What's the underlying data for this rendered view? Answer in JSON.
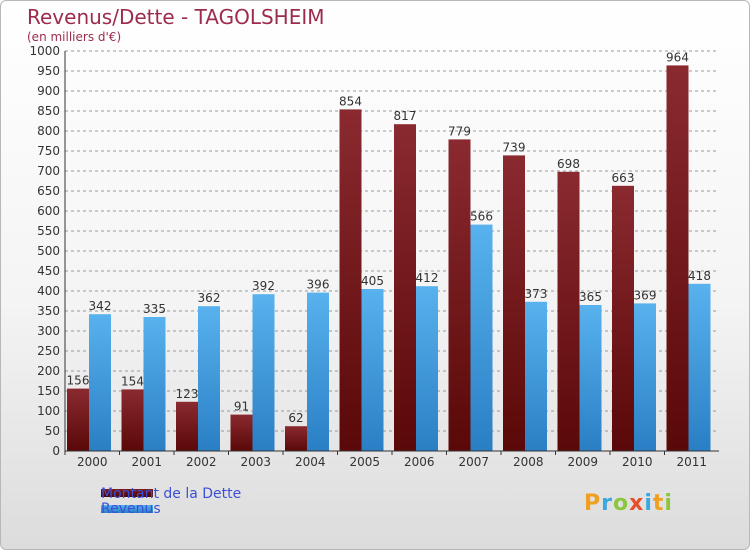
{
  "title": "Revenus/Dette - TAGOLSHEIM",
  "subtitle": "(en milliers d'€)",
  "brand": {
    "text": "Proxiti",
    "colors": [
      "#f0a020",
      "#3aa7e0",
      "#8cc63f",
      "#e84e2a",
      "#3aa7e0",
      "#f0a020",
      "#8cc63f"
    ]
  },
  "colors": {
    "dette": "#7a1c22",
    "revenus": "#4aa6e6",
    "axis": "#333333",
    "grid": "#999999"
  },
  "chart_data": {
    "type": "bar",
    "title": "Revenus/Dette - TAGOLSHEIM",
    "subtitle": "(en milliers d'€)",
    "categories": [
      "2000",
      "2001",
      "2002",
      "2003",
      "2004",
      "2005",
      "2006",
      "2007",
      "2008",
      "2009",
      "2010",
      "2011"
    ],
    "series": [
      {
        "name": "Montant de la Dette",
        "values": [
          156,
          154,
          123,
          91,
          62,
          854,
          817,
          779,
          739,
          698,
          663,
          964
        ]
      },
      {
        "name": "Revenus",
        "values": [
          342,
          335,
          362,
          392,
          396,
          405,
          412,
          566,
          373,
          365,
          369,
          418
        ]
      }
    ],
    "ylim": [
      0,
      1000
    ],
    "ytick_step": 50,
    "grid": true,
    "legend": "bottom-left",
    "data_labels": true
  }
}
